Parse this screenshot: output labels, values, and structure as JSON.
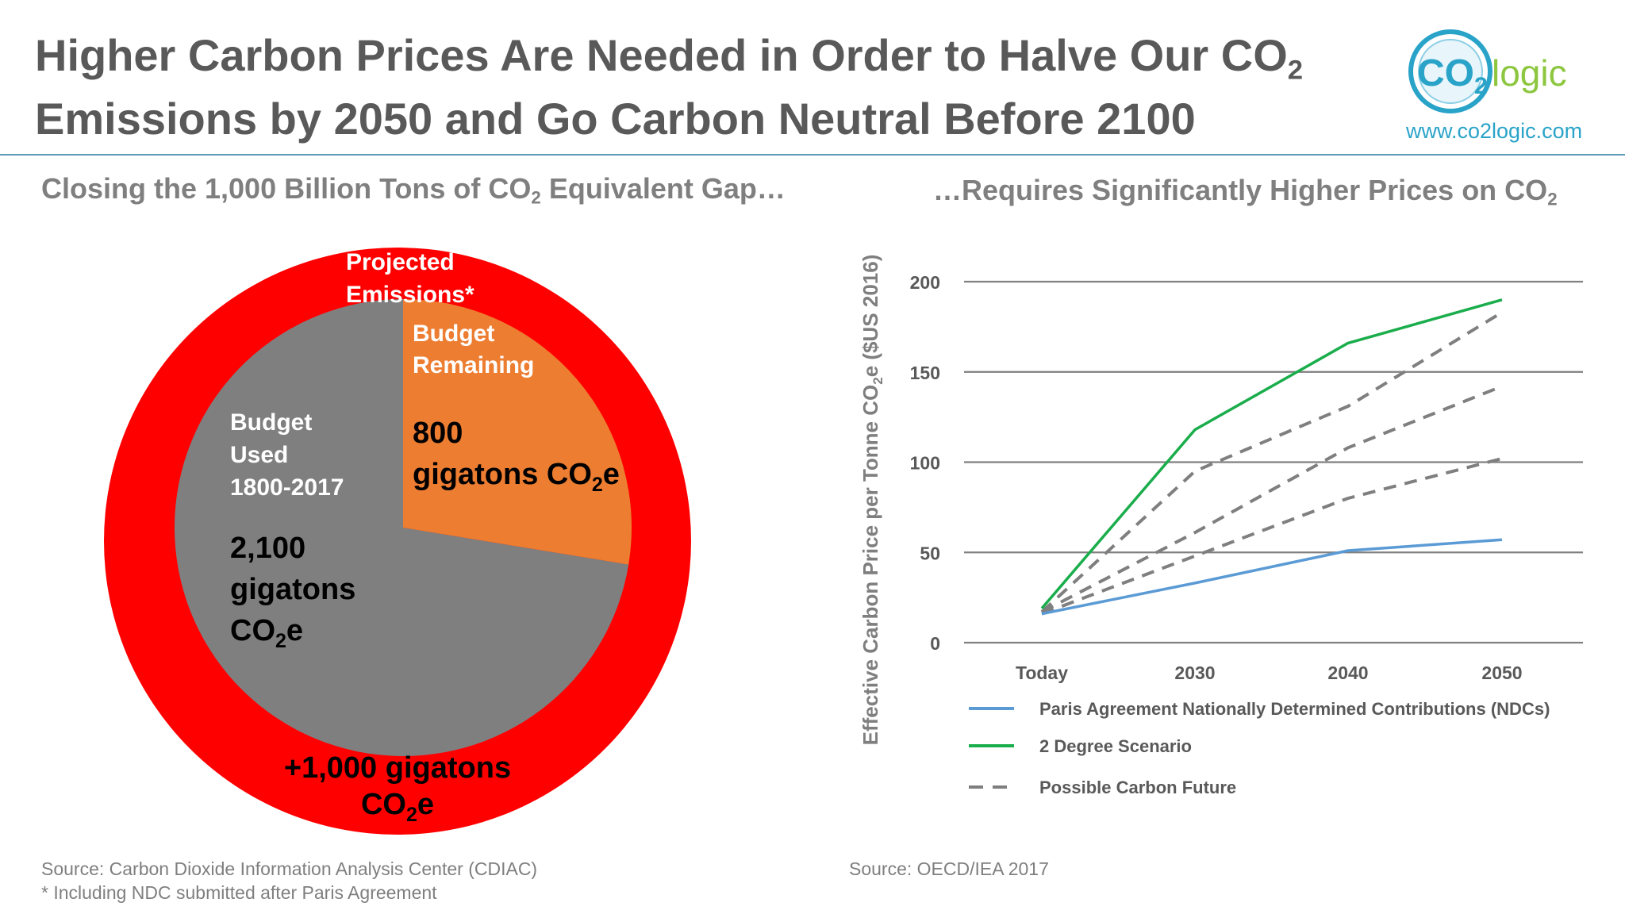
{
  "header": {
    "title_line1_pre": "Higher Carbon Prices Are Needed in Order to Halve Our CO",
    "title_line1_sub": "2",
    "title_line2": "Emissions by 2050 and Go Carbon Neutral Before 2100",
    "logo_text_co": "CO",
    "logo_text_2": "2",
    "logo_text_logic": "logic",
    "logo_url": "www.co2logic.com",
    "colors": {
      "title": "#595959",
      "rule": "#5b9bb5",
      "logo_blue": "#2aa3c9",
      "logo_green": "#8dc63f"
    }
  },
  "left": {
    "subtitle_pre": "Closing the 1,000 Billion Tons of CO",
    "subtitle_sub": "2",
    "subtitle_post": " Equivalent Gap…",
    "source1": "Source: Carbon Dioxide Information Analysis Center (CDIAC)",
    "source2": "* Including NDC submitted after Paris Agreement"
  },
  "right": {
    "subtitle_pre": "…Requires Significantly Higher Prices on CO",
    "subtitle_sub": "2",
    "source": "Source: OECD/IEA 2017"
  },
  "chart_data": [
    {
      "type": "pie",
      "outer_ring": {
        "label_line1": "Projected",
        "label_line2": "Emissions*",
        "value_line1": "+1,000 gigatons",
        "value_line2_pre": "CO",
        "value_line2_sub": "2",
        "value_line2_post": "e",
        "value": 1000,
        "color": "#ff0000"
      },
      "slices": [
        {
          "label_line1": "Budget",
          "label_line2": "Remaining",
          "value_line1": "800",
          "value_line2_pre": "gigatons CO",
          "value_line2_sub": "2",
          "value_line2_post": "e",
          "value": 800,
          "color": "#ed7d31"
        },
        {
          "label_line1": "Budget",
          "label_line2": "Used",
          "label_line3": "1800-2017",
          "value_line1": "2,100",
          "value_line2": "gigatons",
          "value_line3_pre": "CO",
          "value_line3_sub": "2",
          "value_line3_post": "e",
          "value": 2100,
          "color": "#7f7f7f"
        }
      ]
    },
    {
      "type": "line",
      "ylabel_pre": "Effective Carbon Price per Tonne CO",
      "ylabel_sub": "2",
      "ylabel_post": "e ($US 2016)",
      "categories": [
        "Today",
        "2030",
        "2040",
        "2050"
      ],
      "yticks": [
        "0",
        "50",
        "100",
        "150",
        "200"
      ],
      "ylim": [
        0,
        200
      ],
      "grid": true,
      "legend_position": "bottom",
      "series": [
        {
          "name": "Paris Agreement Nationally Determined Contributions (NDCs)",
          "values": [
            16,
            33,
            51,
            57
          ],
          "color": "#5b9bd5",
          "style": "solid"
        },
        {
          "name": "2 Degree Scenario",
          "values": [
            19,
            118,
            166,
            190
          ],
          "color": "#1aad4b",
          "style": "solid"
        },
        {
          "name": "Possible Carbon Future",
          "values": [
            17,
            95,
            131,
            183
          ],
          "color": "#7f7f7f",
          "style": "dashed"
        },
        {
          "values": [
            17,
            61,
            108,
            142
          ],
          "color": "#7f7f7f",
          "style": "dashed"
        },
        {
          "values": [
            16,
            48,
            80,
            102
          ],
          "color": "#7f7f7f",
          "style": "dashed"
        }
      ]
    }
  ]
}
